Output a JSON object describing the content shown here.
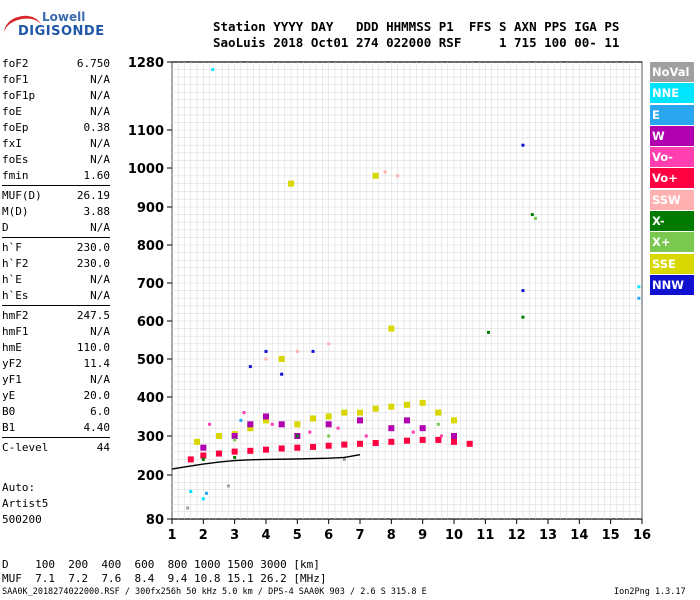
{
  "logo": {
    "line1": "Lowell",
    "line2": "DIGISONDE"
  },
  "header": {
    "line1": "Station YYYY DAY   DDD HHMMSS P1  FFS S AXN PPS IGA PS",
    "line2": "SaoLuis 2018 Oct01 274 022000 RSF     1 715 100 00- 11"
  },
  "params_group1": [
    {
      "name": "foF2",
      "value": "6.750"
    },
    {
      "name": "foF1",
      "value": "N/A"
    },
    {
      "name": "foF1p",
      "value": "N/A"
    },
    {
      "name": "foE",
      "value": "N/A"
    },
    {
      "name": "foEp",
      "value": "0.38"
    },
    {
      "name": "fxI",
      "value": "N/A"
    },
    {
      "name": "foEs",
      "value": "N/A"
    },
    {
      "name": "fmin",
      "value": "1.60"
    }
  ],
  "params_group2": [
    {
      "name": "MUF(D)",
      "value": "26.19"
    },
    {
      "name": "M(D)",
      "value": "3.88"
    },
    {
      "name": "D",
      "value": "N/A"
    }
  ],
  "params_group3": [
    {
      "name": "h`F",
      "value": "230.0"
    },
    {
      "name": "h`F2",
      "value": "230.0"
    },
    {
      "name": "h`E",
      "value": "N/A"
    },
    {
      "name": "h`Es",
      "value": "N/A"
    }
  ],
  "params_group4": [
    {
      "name": "hmF2",
      "value": "247.5"
    },
    {
      "name": "hmF1",
      "value": "N/A"
    },
    {
      "name": "hmE",
      "value": "110.0"
    },
    {
      "name": "yF2",
      "value": "11.4"
    },
    {
      "name": "yF1",
      "value": "N/A"
    },
    {
      "name": "yE",
      "value": "20.0"
    },
    {
      "name": "B0",
      "value": "6.0"
    },
    {
      "name": "B1",
      "value": "4.40"
    }
  ],
  "params_group5": [
    {
      "name": "C-level",
      "value": "44"
    }
  ],
  "auto": {
    "line1": "Auto:",
    "line2": "Artist5",
    "line3": "500200"
  },
  "legend": [
    {
      "label": "NoVal",
      "color": "#a0a0a0"
    },
    {
      "label": "NNE",
      "color": "#00e5ff"
    },
    {
      "label": "E",
      "color": "#2aa6f0"
    },
    {
      "label": "W",
      "color": "#b000b0"
    },
    {
      "label": "Vo-",
      "color": "#ff3fb0"
    },
    {
      "label": "Vo+",
      "color": "#ff0040"
    },
    {
      "label": "SSW",
      "color": "#ffb0b0"
    },
    {
      "label": "X-",
      "color": "#007a00"
    },
    {
      "label": "X+",
      "color": "#7ac850"
    },
    {
      "label": "SSE",
      "color": "#d8d800"
    },
    {
      "label": "NNW",
      "color": "#1010d0"
    }
  ],
  "footer": {
    "line1": "D    100  200  400  600  800 1000 1500 3000 [km]",
    "line2": "MUF  7.1  7.2  7.6  8.4  9.4 10.8 15.1 26.2 [MHz]",
    "line3": "SAA0K_2018274022000.RSF / 300fx256h 50 kHz 5.0 km / DPS-4 SAA0K 903 / 2.6 S 315.8 E",
    "version": "Ion2Png 1.3.17"
  },
  "chart_data": {
    "type": "scatter",
    "x_ticks": [
      1,
      2,
      3,
      4,
      5,
      6,
      7,
      8,
      9,
      10,
      11,
      12,
      13,
      14,
      15,
      16
    ],
    "y_ticks": [
      80,
      200,
      300,
      400,
      500,
      600,
      700,
      800,
      900,
      1000,
      1100,
      1280
    ],
    "y_scale": "nonlinear",
    "xlim": [
      1,
      16
    ],
    "ylim": [
      80,
      1280
    ],
    "grid": true,
    "series": [
      {
        "name": "Vo+",
        "color": "#ff0040",
        "points": [
          [
            1.6,
            240
          ],
          [
            2.0,
            250
          ],
          [
            2.5,
            255
          ],
          [
            3.0,
            260
          ],
          [
            3.5,
            262
          ],
          [
            4.0,
            265
          ],
          [
            4.5,
            268
          ],
          [
            5.0,
            270
          ],
          [
            5.5,
            272
          ],
          [
            6.0,
            275
          ],
          [
            6.5,
            278
          ],
          [
            7.0,
            280
          ],
          [
            7.5,
            282
          ],
          [
            8.0,
            285
          ],
          [
            8.5,
            288
          ],
          [
            9.0,
            290
          ],
          [
            9.5,
            290
          ],
          [
            10.0,
            285
          ],
          [
            10.5,
            280
          ]
        ]
      },
      {
        "name": "SSE",
        "color": "#d8d800",
        "points": [
          [
            1.8,
            285
          ],
          [
            2.5,
            300
          ],
          [
            3.0,
            305
          ],
          [
            3.5,
            320
          ],
          [
            4.0,
            340
          ],
          [
            4.5,
            500
          ],
          [
            5.0,
            330
          ],
          [
            5.5,
            345
          ],
          [
            6.0,
            350
          ],
          [
            6.5,
            360
          ],
          [
            7.0,
            360
          ],
          [
            7.5,
            370
          ],
          [
            8.0,
            375
          ],
          [
            8.5,
            380
          ],
          [
            9.0,
            385
          ],
          [
            9.5,
            360
          ],
          [
            10.0,
            340
          ],
          [
            4.8,
            960
          ],
          [
            7.5,
            980
          ],
          [
            8.0,
            580
          ]
        ]
      },
      {
        "name": "W",
        "color": "#b000b0",
        "points": [
          [
            2.0,
            270
          ],
          [
            3.0,
            300
          ],
          [
            3.5,
            330
          ],
          [
            4.0,
            350
          ],
          [
            4.5,
            330
          ],
          [
            5.0,
            300
          ],
          [
            6.0,
            330
          ],
          [
            7.0,
            340
          ],
          [
            8.0,
            320
          ],
          [
            8.5,
            340
          ],
          [
            9.0,
            320
          ],
          [
            10.0,
            300
          ]
        ]
      },
      {
        "name": "Vo-",
        "color": "#ff3fb0",
        "points": [
          [
            2.2,
            330
          ],
          [
            3.3,
            360
          ],
          [
            4.2,
            330
          ],
          [
            5.4,
            310
          ],
          [
            6.3,
            320
          ],
          [
            7.2,
            300
          ],
          [
            8.7,
            310
          ],
          [
            9.6,
            300
          ]
        ]
      },
      {
        "name": "SSW",
        "color": "#ffb0b0",
        "points": [
          [
            4.0,
            500
          ],
          [
            5.0,
            520
          ],
          [
            6.0,
            540
          ],
          [
            7.8,
            990
          ],
          [
            8.2,
            980
          ]
        ]
      },
      {
        "name": "NNW",
        "color": "#1010d0",
        "points": [
          [
            3.5,
            480
          ],
          [
            4.0,
            520
          ],
          [
            4.5,
            460
          ],
          [
            5.5,
            520
          ],
          [
            12.2,
            1060
          ],
          [
            12.2,
            680
          ]
        ]
      },
      {
        "name": "X-",
        "color": "#007a00",
        "points": [
          [
            2.0,
            240
          ],
          [
            3.0,
            245
          ],
          [
            5.0,
            300
          ],
          [
            11.1,
            570
          ],
          [
            12.5,
            880
          ],
          [
            12.2,
            610
          ]
        ]
      },
      {
        "name": "X+",
        "color": "#7ac850",
        "points": [
          [
            3.0,
            290
          ],
          [
            6.0,
            300
          ],
          [
            9.5,
            330
          ],
          [
            12.6,
            870
          ]
        ]
      },
      {
        "name": "NNE",
        "color": "#00e5ff",
        "points": [
          [
            1.6,
            155
          ],
          [
            2.0,
            135
          ],
          [
            2.3,
            1260
          ],
          [
            15.9,
            690
          ]
        ]
      },
      {
        "name": "E",
        "color": "#2aa6f0",
        "points": [
          [
            2.1,
            150
          ],
          [
            3.2,
            340
          ],
          [
            15.9,
            660
          ]
        ]
      },
      {
        "name": "NoVal",
        "color": "#a0a0a0",
        "points": [
          [
            1.5,
            110
          ],
          [
            2.8,
            170
          ],
          [
            6.5,
            240
          ]
        ]
      }
    ],
    "trace": [
      [
        1.0,
        215
      ],
      [
        1.5,
        222
      ],
      [
        2.0,
        228
      ],
      [
        2.5,
        233
      ],
      [
        3.0,
        237
      ],
      [
        3.5,
        239
      ],
      [
        4.0,
        240
      ],
      [
        5.0,
        241
      ],
      [
        6.0,
        243
      ],
      [
        6.5,
        245
      ],
      [
        7.0,
        252
      ]
    ]
  }
}
